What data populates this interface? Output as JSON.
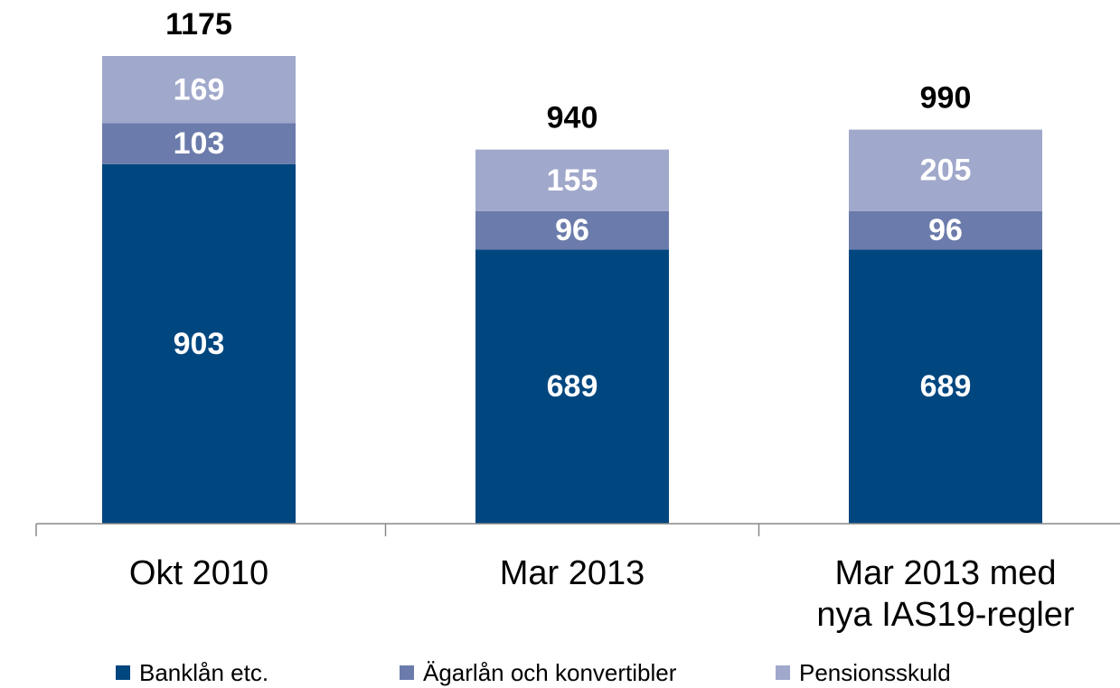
{
  "chart_data": {
    "type": "stacked_bar",
    "categories": [
      "Okt 2010",
      "Mar 2013",
      "Mar 2013 med\nnya IAS19-regler"
    ],
    "series": [
      {
        "name": "Banklån etc.",
        "color": "#00467f",
        "values": [
          903,
          689,
          689
        ]
      },
      {
        "name": "Ägarlån och konvertibler",
        "color": "#6b7bab",
        "values": [
          103,
          96,
          96
        ]
      },
      {
        "name": "Pensionsskuld",
        "color": "#a0a8cb",
        "values": [
          169,
          155,
          205
        ]
      }
    ],
    "totals": [
      1175,
      940,
      990
    ],
    "ylim": [
      0,
      1200
    ]
  }
}
